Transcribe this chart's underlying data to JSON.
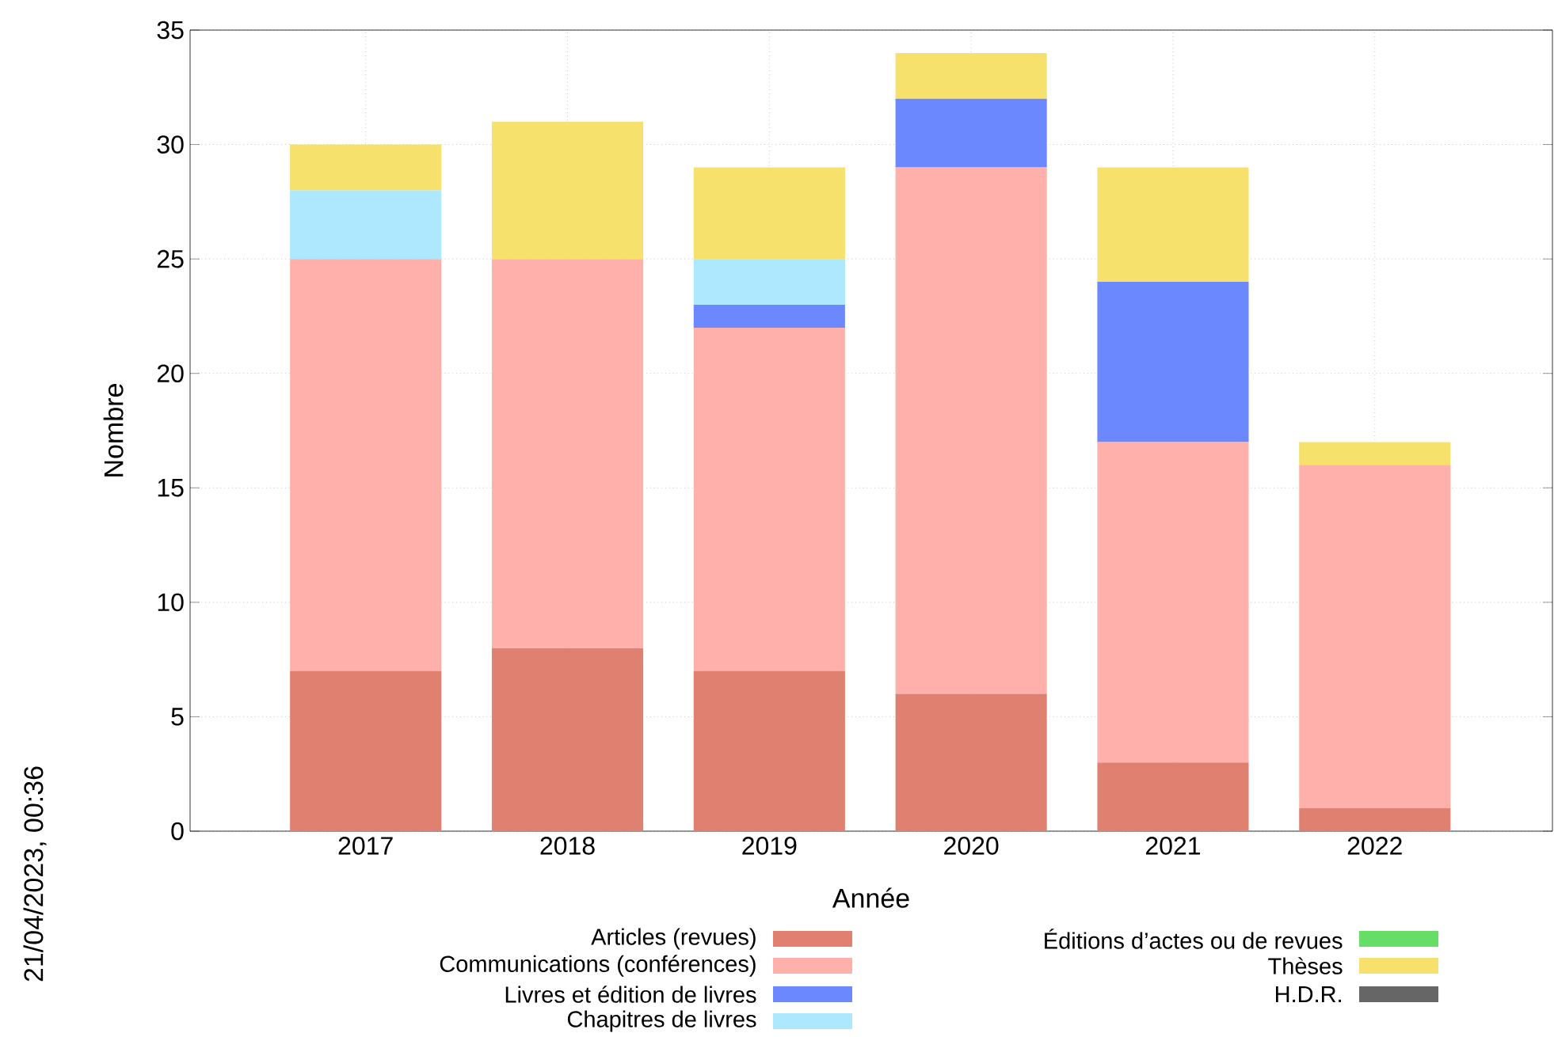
{
  "chart_data": {
    "type": "bar",
    "stacked": true,
    "xlabel": "Année",
    "ylabel": "Nombre",
    "categories": [
      "2017",
      "2018",
      "2019",
      "2020",
      "2021",
      "2022"
    ],
    "series": [
      {
        "name": "Articles (revues)",
        "color": "#e08070",
        "values": [
          7,
          8,
          7,
          6,
          3,
          1
        ]
      },
      {
        "name": "Communications (conférences)",
        "color": "#ffb0ab",
        "values": [
          18,
          17,
          15,
          23,
          14,
          15
        ]
      },
      {
        "name": "Livres et édition de livres",
        "color": "#6b88ff",
        "values": [
          0,
          0,
          1,
          3,
          7,
          0
        ]
      },
      {
        "name": "Chapitres de livres",
        "color": "#ade8ff",
        "values": [
          3,
          0,
          2,
          0,
          0,
          0
        ]
      },
      {
        "name": "Éditions d’actes ou de revues",
        "color": "#66dd66",
        "values": [
          0,
          0,
          0,
          0,
          0,
          0
        ]
      },
      {
        "name": "Thèses",
        "color": "#f5e16b",
        "values": [
          2,
          6,
          4,
          2,
          5,
          1
        ]
      },
      {
        "name": "H.D.R.",
        "color": "#666666",
        "values": [
          0,
          0,
          0,
          0,
          0,
          0
        ]
      }
    ],
    "ylim": [
      0,
      35
    ],
    "yticks": [
      0,
      5,
      10,
      15,
      20,
      25,
      30,
      35
    ],
    "grid": true,
    "legend": "bottom",
    "annotations": [
      "21/04/2023, 00:36"
    ]
  }
}
